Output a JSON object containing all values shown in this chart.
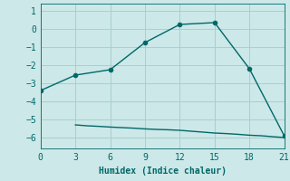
{
  "xlabel": "Humidex (Indice chaleur)",
  "background_color": "#cce8e8",
  "grid_color": "#aacece",
  "line_color": "#006868",
  "xlim": [
    0,
    21
  ],
  "ylim": [
    -6.6,
    1.4
  ],
  "xticks": [
    0,
    3,
    6,
    9,
    12,
    15,
    18,
    21
  ],
  "yticks": [
    1,
    0,
    -1,
    -2,
    -3,
    -4,
    -5,
    -6
  ],
  "line1_x": [
    0,
    3,
    6,
    9,
    12,
    15,
    18,
    21
  ],
  "line1_y": [
    -3.4,
    -2.55,
    -2.25,
    -0.75,
    0.25,
    0.35,
    -2.2,
    -5.9
  ],
  "line2_x": [
    3,
    4,
    5,
    6,
    7,
    8,
    9,
    10,
    11,
    12,
    13,
    14,
    15,
    16,
    17,
    18,
    19,
    20,
    21
  ],
  "line2_y": [
    -5.3,
    -5.35,
    -5.38,
    -5.42,
    -5.45,
    -5.48,
    -5.52,
    -5.55,
    -5.57,
    -5.6,
    -5.65,
    -5.7,
    -5.75,
    -5.78,
    -5.82,
    -5.87,
    -5.9,
    -5.95,
    -6.0
  ],
  "marker_size": 3,
  "linewidth": 1.0,
  "tick_fontsize": 7,
  "xlabel_fontsize": 7
}
